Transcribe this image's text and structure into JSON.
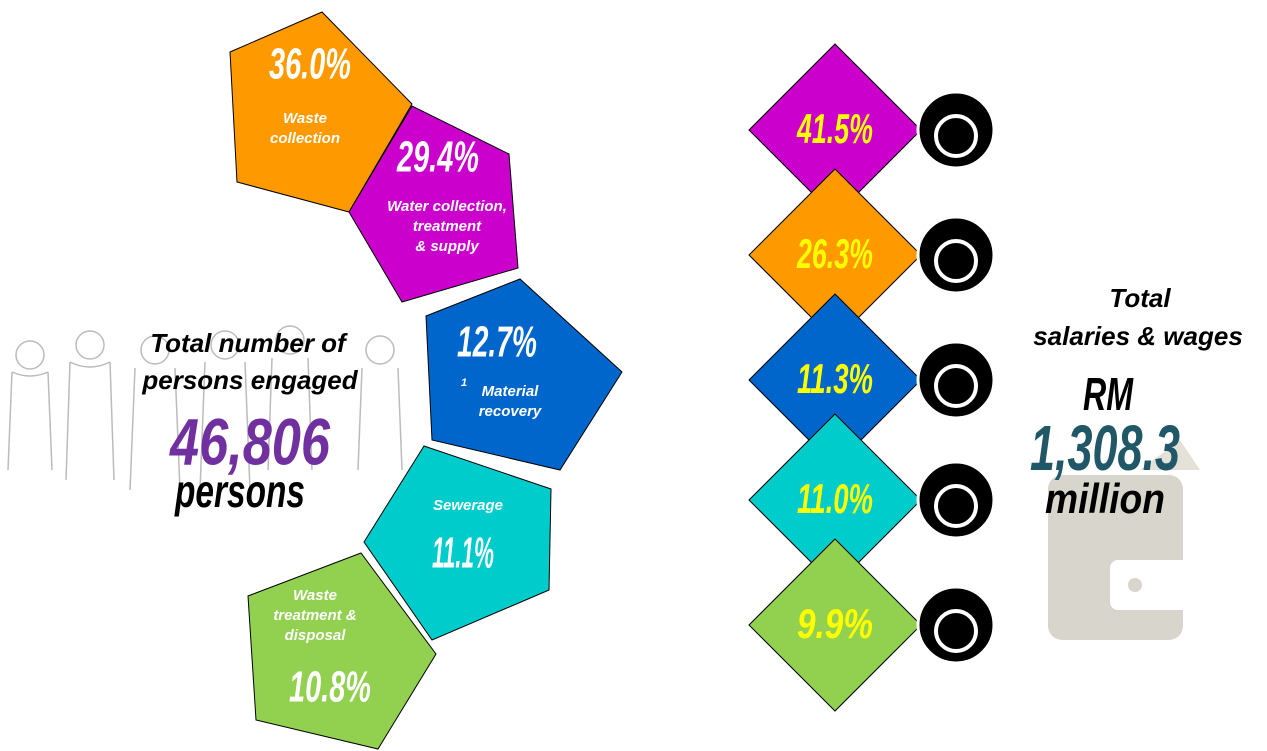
{
  "persons": {
    "title": [
      "Total number of",
      "persons engaged"
    ],
    "value": "46,806",
    "unit": "persons",
    "segments": [
      {
        "value": "36.0%",
        "label": [
          "Waste",
          "collection"
        ]
      },
      {
        "value": "29.4%",
        "label": [
          "Water collection,",
          "treatment",
          "& supply"
        ]
      },
      {
        "value": "12.7%",
        "footnote": "1",
        "label": [
          "Material",
          "recovery"
        ]
      },
      {
        "value": "11.1%",
        "label": [
          "Sewerage"
        ]
      },
      {
        "value": "10.8%",
        "label": [
          "Waste",
          "treatment &",
          "disposal"
        ]
      }
    ]
  },
  "salaries": {
    "title": [
      "Total",
      "salaries & wages"
    ],
    "currency": "RM",
    "value": "1,308.3",
    "unit": "million",
    "segments": [
      "41.5%",
      "26.3%",
      "11.3%",
      "11.0%",
      "9.9%"
    ]
  }
}
